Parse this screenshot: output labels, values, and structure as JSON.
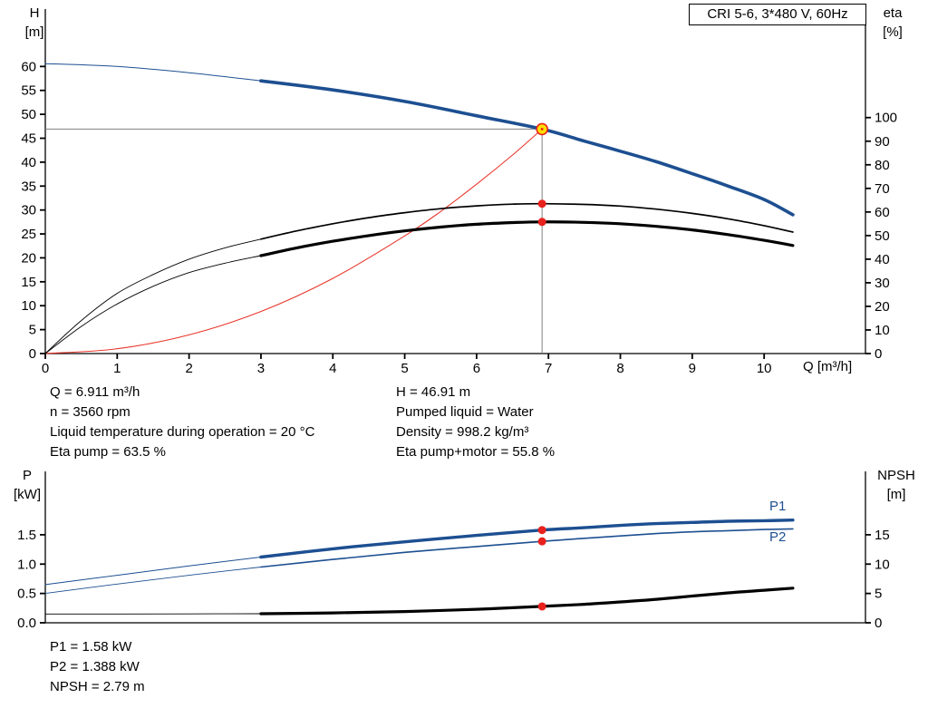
{
  "title_box": {
    "label": "CRI 5-6, 3*480 V, 60Hz"
  },
  "colors": {
    "curve_blue": "#1d4f91",
    "curve_red": "#e8372c",
    "dot_red": "#e8211d",
    "duty_fill": "#ffdf00",
    "duty_stroke": "#e8211d",
    "gray_line": "#808080",
    "axis_black": "#000000"
  },
  "info_top": {
    "left": [
      "Q = 6.911 m³/h",
      "n = 3560 rpm",
      "Liquid temperature during operation = 20 °C",
      "Eta pump = 63.5 %"
    ],
    "right": [
      "H = 46.91 m",
      "Pumped liquid = Water",
      "Density = 998.2 kg/m³",
      "Eta pump+motor = 55.8 %"
    ]
  },
  "info_bottom": [
    "P1 = 1.58 kW",
    "P2 = 1.388 kW",
    "NPSH = 2.79 m"
  ],
  "chart_data": [
    {
      "type": "line",
      "title": "CRI 5-6, 3*480 V, 60Hz",
      "x_axis": {
        "label": "Q [m³/h]",
        "min": 0,
        "max": 11.41,
        "ticks": [
          [
            0,
            "0"
          ],
          [
            1,
            "1"
          ],
          [
            2,
            "2"
          ],
          [
            3,
            "3"
          ],
          [
            4,
            "4"
          ],
          [
            5,
            "5"
          ],
          [
            6,
            "6"
          ],
          [
            7,
            "7"
          ],
          [
            8,
            "8"
          ],
          [
            9,
            "9"
          ],
          [
            10,
            "10"
          ]
        ]
      },
      "y_left": {
        "title": [
          "H",
          "[m]"
        ],
        "min": 0,
        "max": 72,
        "ticks": [
          [
            0,
            "0"
          ],
          [
            5,
            "5"
          ],
          [
            10,
            "10"
          ],
          [
            15,
            "15"
          ],
          [
            20,
            "20"
          ],
          [
            25,
            "25"
          ],
          [
            30,
            "30"
          ],
          [
            35,
            "35"
          ],
          [
            40,
            "40"
          ],
          [
            45,
            "45"
          ],
          [
            50,
            "50"
          ],
          [
            55,
            "55"
          ],
          [
            60,
            "60"
          ]
        ]
      },
      "y_right": {
        "title": [
          "eta",
          "[%]"
        ],
        "min": 0,
        "max": 146,
        "ticks": [
          [
            0,
            "0"
          ],
          [
            10,
            "10"
          ],
          [
            20,
            "20"
          ],
          [
            30,
            "30"
          ],
          [
            40,
            "40"
          ],
          [
            50,
            "50"
          ],
          [
            60,
            "60"
          ],
          [
            70,
            "70"
          ],
          [
            80,
            "80"
          ],
          [
            90,
            "90"
          ],
          [
            100,
            "100"
          ]
        ]
      },
      "series": [
        {
          "name": "h-curve-extension",
          "axis": "left",
          "color": "#1d4f91",
          "width": 1,
          "points": [
            [
              0,
              60.6
            ],
            [
              1,
              60.0
            ],
            [
              2,
              58.7
            ],
            [
              3,
              57.0
            ]
          ]
        },
        {
          "name": "h-curve",
          "axis": "left",
          "color": "#1d4f91",
          "width": 3.6,
          "points": [
            [
              3,
              57.0
            ],
            [
              4,
              55.1
            ],
            [
              5,
              52.7
            ],
            [
              6,
              49.7
            ],
            [
              6.911,
              46.91
            ],
            [
              7.5,
              44.4
            ],
            [
              8,
              42.3
            ],
            [
              8.5,
              40.1
            ],
            [
              9,
              37.6
            ],
            [
              9.5,
              35.0
            ],
            [
              10,
              32.2
            ],
            [
              10.4,
              29.0
            ]
          ]
        },
        {
          "name": "system-curve",
          "axis": "left",
          "color": "#e8372c",
          "width": 1.1,
          "points": [
            [
              0,
              0
            ],
            [
              1,
              1.0
            ],
            [
              2,
              3.9
            ],
            [
              3,
              8.8
            ],
            [
              4,
              15.7
            ],
            [
              5,
              24.6
            ],
            [
              5.5,
              29.7
            ],
            [
              6,
              35.4
            ],
            [
              6.5,
              41.5
            ],
            [
              6.911,
              46.91
            ]
          ]
        },
        {
          "name": "eta-pump-curve-extension",
          "axis": "right",
          "color": "#000000",
          "width": 0.9,
          "points": [
            [
              0,
              0
            ],
            [
              0.5,
              14
            ],
            [
              1,
              25.5
            ],
            [
              1.5,
              33.5
            ],
            [
              2,
              40
            ],
            [
              2.5,
              44.8
            ],
            [
              3,
              48.5
            ]
          ]
        },
        {
          "name": "eta-pump-curve",
          "axis": "right",
          "color": "#000000",
          "width": 1.7,
          "points": [
            [
              3,
              48.5
            ],
            [
              3.5,
              52
            ],
            [
              4,
              55
            ],
            [
              4.5,
              57.6
            ],
            [
              5,
              59.7
            ],
            [
              5.5,
              61.4
            ],
            [
              6,
              62.6
            ],
            [
              6.5,
              63.3
            ],
            [
              6.911,
              63.5
            ],
            [
              7.5,
              63.2
            ],
            [
              8,
              62.5
            ],
            [
              8.5,
              61.2
            ],
            [
              9,
              59.4
            ],
            [
              9.5,
              57.1
            ],
            [
              10,
              54.2
            ],
            [
              10.4,
              51.5
            ]
          ]
        },
        {
          "name": "eta-pump-motor-curve-extension",
          "axis": "right",
          "color": "#000000",
          "width": 0.9,
          "points": [
            [
              0,
              0
            ],
            [
              0.5,
              11.5
            ],
            [
              1,
              21
            ],
            [
              1.5,
              28.5
            ],
            [
              2,
              34.3
            ],
            [
              2.5,
              38.3
            ],
            [
              3,
              41.5
            ]
          ]
        },
        {
          "name": "eta-pump-motor-curve",
          "axis": "right",
          "color": "#000000",
          "width": 3.2,
          "points": [
            [
              3,
              41.5
            ],
            [
              3.5,
              44.8
            ],
            [
              4,
              47.6
            ],
            [
              4.5,
              50.0
            ],
            [
              5,
              52.0
            ],
            [
              5.5,
              53.6
            ],
            [
              6,
              54.8
            ],
            [
              6.5,
              55.5
            ],
            [
              6.911,
              55.8
            ],
            [
              7.5,
              55.6
            ],
            [
              8,
              55.0
            ],
            [
              8.5,
              53.9
            ],
            [
              9,
              52.4
            ],
            [
              9.5,
              50.4
            ],
            [
              10,
              48.0
            ],
            [
              10.4,
              45.8
            ]
          ]
        }
      ],
      "duty": {
        "q": 6.911,
        "h": 46.91,
        "hline": true,
        "vline": true,
        "markers": [
          {
            "style": "operating-point",
            "axis": "left",
            "q": 6.911,
            "value": 46.91
          },
          {
            "style": "dot",
            "axis": "right",
            "q": 6.911,
            "value": 63.5
          },
          {
            "style": "dot",
            "axis": "right",
            "q": 6.911,
            "value": 55.8
          }
        ]
      }
    },
    {
      "type": "line",
      "x_axis": {
        "label": "",
        "min": 0,
        "max": 11.41,
        "ticks": []
      },
      "y_left": {
        "title": [
          "P",
          "[kW]"
        ],
        "min": 0,
        "max": 2.58,
        "ticks": [
          [
            0,
            "0.0"
          ],
          [
            0.5,
            "0.5"
          ],
          [
            1,
            "1.0"
          ],
          [
            1.5,
            "1.5"
          ]
        ]
      },
      "y_right": {
        "title": [
          "NPSH",
          "[m]"
        ],
        "min": 0,
        "max": 25.8,
        "ticks": [
          [
            0,
            "0"
          ],
          [
            5,
            "5"
          ],
          [
            10,
            "10"
          ],
          [
            15,
            "15"
          ]
        ]
      },
      "series": [
        {
          "name": "p1-curve-extension",
          "axis": "left",
          "color": "#1d4f91",
          "width": 1,
          "points": [
            [
              0,
              0.65
            ],
            [
              1,
              0.81
            ],
            [
              2,
              0.97
            ],
            [
              3,
              1.12
            ]
          ]
        },
        {
          "name": "p1-curve",
          "label": "P1",
          "axis": "left",
          "color": "#1d4f91",
          "width": 3.4,
          "points": [
            [
              3,
              1.12
            ],
            [
              4,
              1.26
            ],
            [
              5,
              1.38
            ],
            [
              6,
              1.49
            ],
            [
              6.911,
              1.58
            ],
            [
              7.5,
              1.62
            ],
            [
              8,
              1.66
            ],
            [
              8.5,
              1.69
            ],
            [
              9,
              1.71
            ],
            [
              9.5,
              1.73
            ],
            [
              10,
              1.74
            ],
            [
              10.4,
              1.75
            ]
          ]
        },
        {
          "name": "p2-curve-extension",
          "axis": "left",
          "color": "#1d4f91",
          "width": 0.9,
          "points": [
            [
              0,
              0.5
            ],
            [
              1,
              0.66
            ],
            [
              2,
              0.81
            ],
            [
              3,
              0.95
            ]
          ]
        },
        {
          "name": "p2-curve",
          "label": "P2",
          "axis": "left",
          "color": "#1d4f91",
          "width": 1.6,
          "points": [
            [
              3,
              0.95
            ],
            [
              4,
              1.08
            ],
            [
              5,
              1.2
            ],
            [
              6,
              1.3
            ],
            [
              6.911,
              1.388
            ],
            [
              7.5,
              1.44
            ],
            [
              8,
              1.48
            ],
            [
              8.5,
              1.52
            ],
            [
              9,
              1.55
            ],
            [
              9.5,
              1.57
            ],
            [
              10,
              1.59
            ],
            [
              10.4,
              1.6
            ]
          ]
        },
        {
          "name": "npsh-curve-extension",
          "axis": "right",
          "color": "#000000",
          "width": 0.9,
          "points": [
            [
              0,
              1.5
            ],
            [
              1,
              1.5
            ],
            [
              2,
              1.52
            ],
            [
              3,
              1.55
            ]
          ]
        },
        {
          "name": "npsh-curve",
          "axis": "right",
          "color": "#000000",
          "width": 3.2,
          "points": [
            [
              3,
              1.55
            ],
            [
              4,
              1.68
            ],
            [
              5,
              1.92
            ],
            [
              6,
              2.3
            ],
            [
              6.911,
              2.79
            ],
            [
              7.5,
              3.15
            ],
            [
              8,
              3.55
            ],
            [
              8.5,
              4.0
            ],
            [
              9,
              4.55
            ],
            [
              9.5,
              5.1
            ],
            [
              10,
              5.55
            ],
            [
              10.4,
              5.9
            ]
          ]
        }
      ],
      "duty": {
        "markers": [
          {
            "style": "dot",
            "axis": "left",
            "q": 6.911,
            "value": 1.58
          },
          {
            "style": "dot",
            "axis": "left",
            "q": 6.911,
            "value": 1.388
          },
          {
            "style": "dot",
            "axis": "right",
            "q": 6.911,
            "value": 2.79
          }
        ]
      }
    }
  ]
}
